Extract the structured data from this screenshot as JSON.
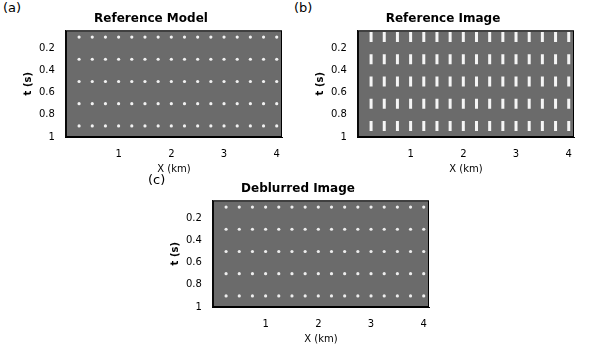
{
  "chart_data": [
    {
      "type": "scatter",
      "label": "(a)",
      "title": "Reference Model",
      "x_label": "X (km)",
      "y_label": "t (s)",
      "xlim": [
        0,
        4.1
      ],
      "ylim": [
        0.04,
        1
      ],
      "xticks": [
        1,
        2,
        3,
        4
      ],
      "yticks": [
        0.2,
        0.4,
        0.6,
        0.8,
        1
      ],
      "x": [
        0.25,
        0.5,
        0.75,
        1.0,
        1.25,
        1.5,
        1.75,
        2.0,
        2.25,
        2.5,
        2.75,
        3.0,
        3.25,
        3.5,
        3.75,
        4.0
      ],
      "rows": [
        0.1,
        0.3,
        0.5,
        0.7,
        0.9
      ],
      "color": "#f2f2f2",
      "marker": "circle"
    },
    {
      "type": "scatter",
      "label": "(b)",
      "title": "Reference Image",
      "x_label": "X (km)",
      "y_label": "t (s)",
      "xlim": [
        0,
        4.1
      ],
      "ylim": [
        0.04,
        1
      ],
      "xticks": [
        1,
        2,
        3,
        4
      ],
      "yticks": [
        0.2,
        0.4,
        0.6,
        0.8,
        1
      ],
      "x": [
        0.25,
        0.5,
        0.75,
        1.0,
        1.25,
        1.5,
        1.75,
        2.0,
        2.25,
        2.5,
        2.75,
        3.0,
        3.25,
        3.5,
        3.75,
        4.0
      ],
      "rows": [
        0.1,
        0.3,
        0.5,
        0.7,
        0.9
      ],
      "color": "#f5f5f5",
      "marker": "line"
    },
    {
      "type": "scatter",
      "label": "(c)",
      "title": "Deblurred Image",
      "x_label": "X (km)",
      "y_label": "t (s)",
      "xlim": [
        0,
        4.1
      ],
      "ylim": [
        0.04,
        1
      ],
      "xticks": [
        1,
        2,
        3,
        4
      ],
      "yticks": [
        0.2,
        0.4,
        0.6,
        0.8,
        1
      ],
      "x": [
        0.25,
        0.5,
        0.75,
        1.0,
        1.25,
        1.5,
        1.75,
        2.0,
        2.25,
        2.5,
        2.75,
        3.0,
        3.25,
        3.5,
        3.75,
        4.0
      ],
      "rows": [
        0.1,
        0.3,
        0.5,
        0.7,
        0.9
      ],
      "color": "#eeeeee",
      "marker": "circle"
    }
  ]
}
